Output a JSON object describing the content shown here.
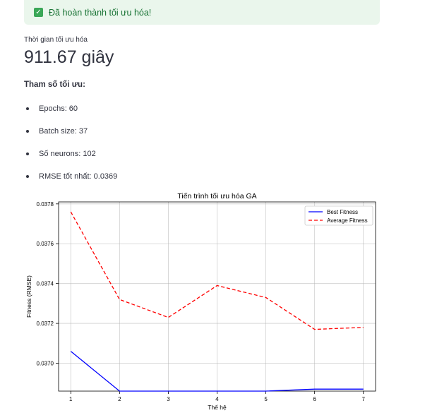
{
  "alert": {
    "text": "Đã hoàn thành tối ưu hóa!"
  },
  "metric": {
    "label": "Thời gian tối ưu hóa",
    "value": "911.67 giây"
  },
  "params": {
    "title": "Tham số tối ưu:",
    "items": [
      "Epochs: 60",
      "Batch size: 37",
      "Số neurons: 102",
      "RMSE tốt nhất: 0.0369"
    ]
  },
  "chart_data": {
    "type": "line",
    "title": "Tiến trình tối ưu hóa GA",
    "xlabel": "Thế hệ",
    "ylabel": "Fitness (RMSE)",
    "x": [
      1,
      2,
      3,
      4,
      5,
      6,
      7
    ],
    "xlim": [
      0.75,
      7.25
    ],
    "ylim": [
      0.03686,
      0.03781
    ],
    "yticks": [
      0.037,
      0.0372,
      0.0374,
      0.0376,
      0.0378
    ],
    "ytick_labels": [
      "0.0370",
      "0.0372",
      "0.0374",
      "0.0376",
      "0.0378"
    ],
    "grid": true,
    "legend_position": "top-right",
    "series": [
      {
        "name": "Best Fitness",
        "color": "#0000ff",
        "style": "solid",
        "values": [
          0.03706,
          0.03686,
          0.03686,
          0.03686,
          0.03686,
          0.03687,
          0.03687
        ]
      },
      {
        "name": "Average Fitness",
        "color": "#ff0000",
        "style": "dashed",
        "values": [
          0.03776,
          0.03732,
          0.03723,
          0.03739,
          0.03733,
          0.03717,
          0.03718
        ]
      }
    ]
  }
}
